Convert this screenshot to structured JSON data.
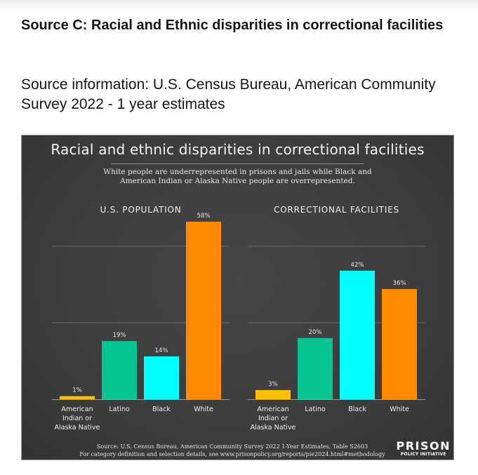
{
  "page": {
    "heading": "Source C: Racial and Ethnic disparities in correctional facilities",
    "source_info": "Source information: U.S. Census Bureau, American Community Survey 2022 - 1 year estimates"
  },
  "chart_data": {
    "type": "bar",
    "title": "Racial and ethnic disparities in correctional facilities",
    "subtitle_line1": "White people are underrepresented in prisons and jails while Black and",
    "subtitle_line2": "American Indian or Alaska Native people are overrepresented.",
    "categories": [
      "American Indian or Alaska Native",
      "Latino",
      "Black",
      "White"
    ],
    "category_lines": [
      [
        "American",
        "Indian or",
        "Alaska Native"
      ],
      [
        "Latino"
      ],
      [
        "Black"
      ],
      [
        "White"
      ]
    ],
    "colors": [
      "#ffc000",
      "#05c690",
      "#00ffff",
      "#ff8c00"
    ],
    "ylim": [
      0,
      58
    ],
    "gridlines": [
      25,
      50
    ],
    "grid": true,
    "unit": "%",
    "panels": [
      {
        "name": "U.S. POPULATION",
        "values": [
          1,
          19,
          14,
          58
        ]
      },
      {
        "name": "CORRECTIONAL FACILITIES",
        "values": [
          3,
          20,
          42,
          36
        ]
      }
    ],
    "footer_line1": "Source: U.S. Census Bureau, American Community Survey 2022 1-Year Estimates, Table S2603",
    "footer_line2": "For category definition and selection details, see www.prisonpolicy.org/reports/pie2024.html#methodology",
    "logo_main": "PRISON",
    "logo_sub": "POLICY INITIATIVE"
  }
}
